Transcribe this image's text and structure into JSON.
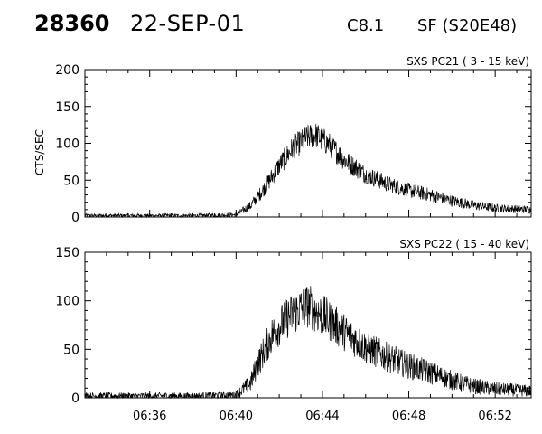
{
  "header": {
    "event_id": "28360",
    "date": "22-SEP-01",
    "flare_class": "C8.1",
    "flare_type": "SF (S20E48)"
  },
  "chart_data": [
    {
      "type": "line",
      "title": "SXS PC21  (  3 - 15 keV)",
      "ylabel": "CTS/SEC",
      "xlabel": "",
      "xlim": [
        "06:33:00",
        "06:53:40"
      ],
      "ylim": [
        0,
        200
      ],
      "yticks": [
        0,
        50,
        100,
        150,
        200
      ],
      "xticks": [],
      "grid": false,
      "profile": {
        "x": [
          "06:33:00",
          "06:38:00",
          "06:40:00",
          "06:40:40",
          "06:41:20",
          "06:42:00",
          "06:42:40",
          "06:43:20",
          "06:43:40",
          "06:44:20",
          "06:45:00",
          "06:46:00",
          "06:47:00",
          "06:48:00",
          "06:49:00",
          "06:50:00",
          "06:51:00",
          "06:52:00",
          "06:53:40"
        ],
        "y": [
          2,
          2,
          3,
          15,
          40,
          70,
          95,
          108,
          112,
          98,
          78,
          58,
          45,
          36,
          30,
          22,
          16,
          12,
          10
        ]
      }
    },
    {
      "type": "line",
      "title": "SXS PC22  ( 15 - 40 keV)",
      "ylabel": "",
      "xlabel": "",
      "xlim": [
        "06:33:00",
        "06:53:40"
      ],
      "ylim": [
        0,
        150
      ],
      "yticks": [
        0,
        50,
        100,
        150
      ],
      "xticks": [
        "06:36",
        "06:40",
        "06:44",
        "06:48",
        "06:52"
      ],
      "grid": false,
      "profile": {
        "x": [
          "06:33:00",
          "06:38:00",
          "06:40:00",
          "06:40:40",
          "06:41:00",
          "06:41:40",
          "06:42:20",
          "06:43:00",
          "06:43:20",
          "06:44:00",
          "06:45:00",
          "06:46:00",
          "06:47:00",
          "06:48:00",
          "06:49:00",
          "06:50:00",
          "06:51:00",
          "06:52:00",
          "06:53:40"
        ],
        "y": [
          2,
          2,
          3,
          15,
          35,
          65,
          82,
          92,
          95,
          85,
          68,
          52,
          42,
          33,
          26,
          18,
          12,
          9,
          7
        ]
      }
    }
  ]
}
